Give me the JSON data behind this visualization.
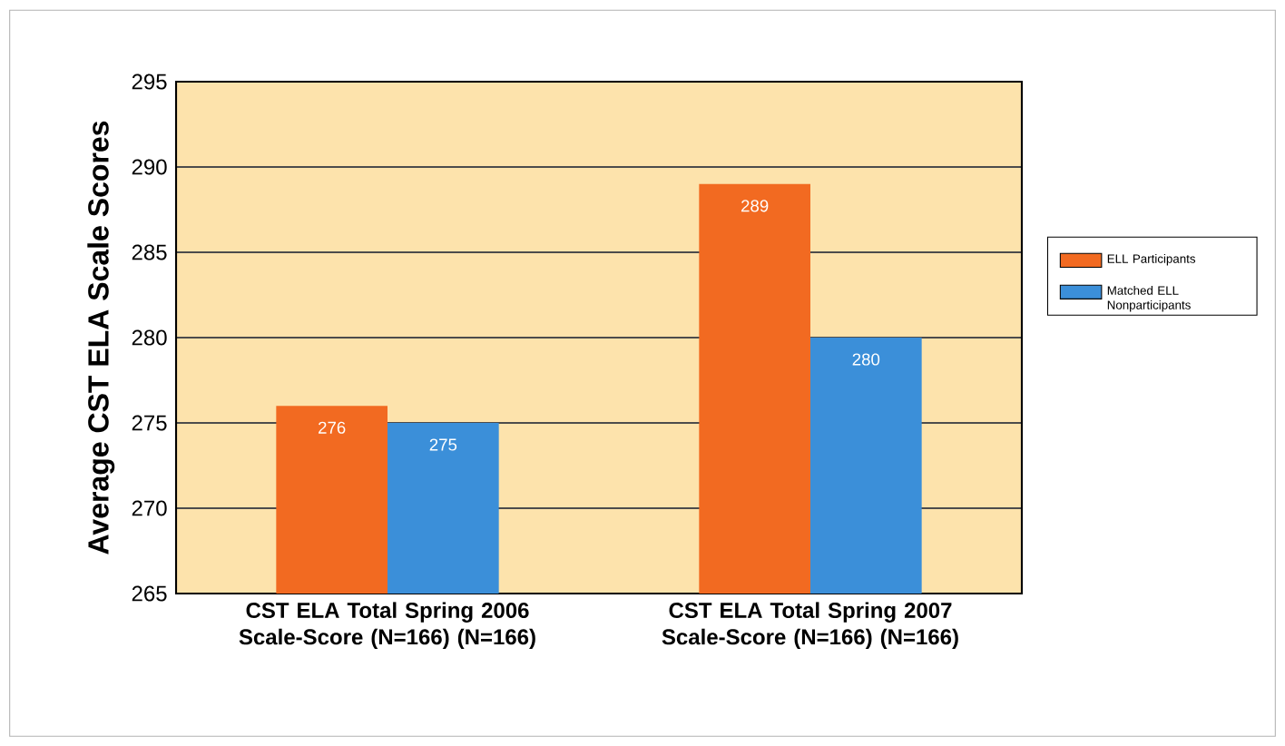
{
  "chart_data": {
    "type": "bar",
    "ylabel": "Average CST ELA Scale Scores",
    "categories": [
      "CST ELA Total Spring 2006 Scale-Score (N=166) (N=166)",
      "CST ELA Total Spring 2007 Scale-Score (N=166) (N=166)"
    ],
    "series": [
      {
        "name": "ELL Participants",
        "color": "#f26a21",
        "values": [
          276,
          289
        ]
      },
      {
        "name": "Matched ELL Nonparticipants",
        "color": "#3b8fd9",
        "values": [
          275,
          280
        ]
      }
    ],
    "ylim": [
      265,
      295
    ],
    "yticks": [
      265,
      270,
      275,
      280,
      285,
      290,
      295
    ],
    "grid": "y",
    "legend": "right",
    "data_labels": true
  }
}
